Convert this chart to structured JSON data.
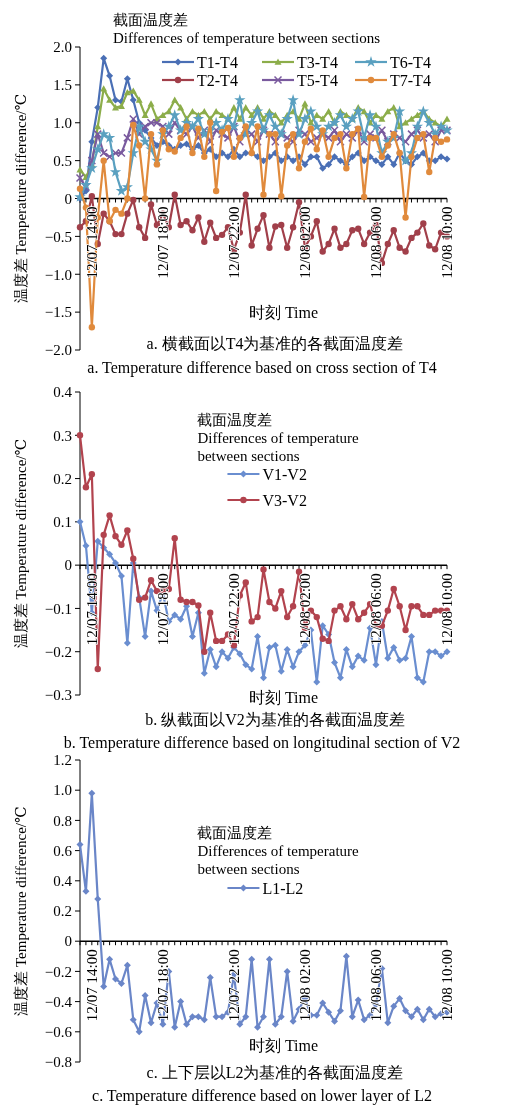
{
  "chart_data": [
    {
      "type": "line",
      "title": "a. 横截面以T4为基准的各截面温度差",
      "subtitle": "a. Temperature difference based on cross section of T4",
      "xlabel": "时刻 Time",
      "ylabel": "温度差 Temperature difference/℃",
      "legend_title": "截面温度差\nDifferences of temperature between sections",
      "legend": "top right",
      "categories": [
        null,
        null,
        "12/07 14:00",
        null,
        null,
        null,
        null,
        null,
        null,
        null,
        null,
        null,
        null,
        null,
        "12/07 18:00",
        null,
        null,
        null,
        null,
        null,
        null,
        null,
        null,
        null,
        null,
        null,
        "12/07 22:00",
        null,
        null,
        null,
        null,
        null,
        null,
        null,
        null,
        null,
        null,
        null,
        "12/08 02:00",
        null,
        null,
        null,
        null,
        null,
        null,
        null,
        null,
        null,
        null,
        null,
        "12/08 06:00",
        null,
        null,
        null,
        null,
        null,
        null,
        null,
        null,
        null,
        null,
        null,
        "12/08 10:00"
      ],
      "ylim": [
        -2,
        2
      ],
      "yticks": [
        {
          "value": -2,
          "label": "−2.0"
        },
        {
          "value": -1.5,
          "label": "−1.5"
        },
        {
          "value": -1,
          "label": "−1.0"
        },
        {
          "value": -0.5,
          "label": "−0.5"
        },
        0,
        {
          "value": 0.5,
          "label": "0.5"
        },
        {
          "value": 1,
          "label": "1.0"
        },
        {
          "value": 1.5,
          "label": "1.5"
        },
        {
          "value": 2,
          "label": "2.0"
        }
      ],
      "series": [
        {
          "name": "T1-T4",
          "color": "#4a6fb5",
          "marker": "diamond",
          "values": [
            0.0,
            0.1,
            0.75,
            1.2,
            1.85,
            1.62,
            1.3,
            1.28,
            1.58,
            1.3,
            1.0,
            0.9,
            0.8,
            0.7,
            0.75,
            0.7,
            0.65,
            0.7,
            0.72,
            0.65,
            0.7,
            0.6,
            0.65,
            0.55,
            0.6,
            0.55,
            0.65,
            0.55,
            0.6,
            0.6,
            0.55,
            0.5,
            0.55,
            0.6,
            0.5,
            0.55,
            0.5,
            0.55,
            0.45,
            0.55,
            0.55,
            0.4,
            0.45,
            0.55,
            0.5,
            0.45,
            0.55,
            0.6,
            0.5,
            0.55,
            0.5,
            0.45,
            0.55,
            0.45,
            0.6,
            0.5,
            0.45,
            0.55,
            0.6,
            0.5,
            0.5,
            0.55,
            0.52
          ]
        },
        {
          "name": "T2-T4",
          "color": "#a13f4a",
          "marker": "circle",
          "values": [
            -0.38,
            -0.3,
            0.03,
            -0.6,
            -0.2,
            -0.3,
            -0.47,
            -0.47,
            -0.2,
            -0.02,
            -0.38,
            -0.52,
            -0.08,
            -0.35,
            -0.2,
            -0.38,
            0.05,
            -0.35,
            -0.3,
            -0.42,
            -0.25,
            -0.57,
            -0.32,
            -0.52,
            -0.48,
            -0.38,
            -0.68,
            -0.45,
            0.05,
            -0.62,
            -0.4,
            -0.22,
            -0.65,
            -0.37,
            -0.35,
            -0.65,
            -0.38,
            -0.05,
            -0.65,
            -0.5,
            -0.3,
            -0.7,
            -0.6,
            -0.4,
            -0.65,
            -0.6,
            -0.42,
            -0.4,
            -0.6,
            -0.45,
            -0.35,
            -0.85,
            -0.6,
            -0.42,
            -0.65,
            -0.7,
            -0.52,
            -0.45,
            -0.33,
            -0.62,
            -0.67,
            -0.45,
            -0.5
          ]
        },
        {
          "name": "T3-T4",
          "color": "#8cad4a",
          "marker": "triangle",
          "values": [
            0.38,
            0.28,
            0.45,
            0.95,
            1.45,
            1.3,
            1.2,
            1.22,
            1.4,
            1.42,
            1.3,
            1.1,
            1.25,
            1.05,
            1.1,
            1.15,
            1.3,
            1.2,
            1.05,
            1.15,
            1.1,
            1.15,
            1.05,
            1.15,
            1.1,
            1.05,
            1.2,
            1.05,
            1.2,
            1.1,
            1.2,
            1.05,
            1.15,
            1.1,
            1.0,
            1.1,
            1.15,
            1.05,
            1.25,
            1.0,
            1.1,
            1.05,
            1.15,
            1.0,
            1.15,
            1.1,
            1.05,
            1.2,
            1.15,
            1.0,
            1.1,
            1.05,
            1.15,
            1.2,
            0.95,
            1.0,
            1.05,
            1.1,
            1.15,
            1.05,
            1.0,
            0.95,
            1.05
          ]
        },
        {
          "name": "T5-T4",
          "color": "#7a5a9e",
          "marker": "cross",
          "values": [
            0.27,
            0.15,
            0.5,
            0.85,
            0.6,
            0.55,
            0.6,
            0.6,
            0.8,
            1.05,
            0.85,
            0.95,
            1.0,
            1.0,
            0.95,
            0.85,
            1.0,
            0.9,
            0.85,
            0.95,
            0.8,
            0.9,
            0.75,
            0.9,
            0.85,
            0.8,
            0.95,
            0.75,
            0.9,
            0.85,
            0.75,
            0.9,
            0.85,
            0.75,
            0.85,
            0.8,
            0.75,
            0.9,
            0.85,
            0.75,
            0.8,
            0.85,
            0.8,
            0.9,
            0.75,
            0.85,
            0.8,
            0.9,
            0.75,
            0.85,
            0.8,
            0.9,
            0.75,
            0.85,
            0.8,
            0.75,
            0.85,
            0.9,
            0.8,
            0.85,
            0.75,
            0.9,
            0.9
          ]
        },
        {
          "name": "T6-T4",
          "color": "#5aa0c0",
          "marker": "star",
          "values": [
            0.02,
            0.18,
            0.4,
            0.65,
            0.85,
            0.8,
            0.35,
            0.1,
            0.15,
            0.6,
            0.95,
            0.75,
            0.65,
            0.5,
            0.85,
            0.95,
            1.1,
            0.9,
            1.0,
            0.95,
            1.05,
            0.85,
            0.9,
            1.0,
            0.9,
            1.05,
            0.95,
            1.3,
            0.85,
            1.0,
            1.15,
            0.9,
            1.1,
            0.95,
            0.85,
            1.05,
            1.3,
            0.85,
            1.05,
            1.15,
            0.95,
            0.85,
            0.95,
            1.0,
            1.1,
            0.95,
            1.05,
            1.15,
            0.8,
            1.1,
            0.95,
            0.6,
            0.75,
            0.8,
            1.15,
            0.5,
            0.6,
            0.95,
            1.15,
            1.0,
            0.85,
            0.95,
            0.9
          ]
        },
        {
          "name": "T7-T4",
          "color": "#e08a3c",
          "marker": "circle",
          "values": [
            0.13,
            -0.12,
            -1.7,
            -0.25,
            0.5,
            -0.3,
            -0.15,
            -0.2,
            0.0,
            0.97,
            0.7,
            0.0,
            0.85,
            0.45,
            0.9,
            0.65,
            0.62,
            0.8,
            0.95,
            0.6,
            0.92,
            0.55,
            1.0,
            0.1,
            0.88,
            0.93,
            0.55,
            0.8,
            0.95,
            0.6,
            0.95,
            0.05,
            0.85,
            0.85,
            0.03,
            0.7,
            0.85,
            0.4,
            0.75,
            0.92,
            0.65,
            0.9,
            0.55,
            0.8,
            0.85,
            0.4,
            0.85,
            0.92,
            0.02,
            0.8,
            0.8,
            0.55,
            0.7,
            0.85,
            0.6,
            -0.25,
            0.55,
            0.8,
            0.85,
            0.35,
            0.8,
            0.75,
            0.78
          ]
        }
      ]
    },
    {
      "type": "line",
      "title": "b. 纵截面以V2为基准的各截面温度差",
      "subtitle": "b. Temperature difference based on longitudinal section of V2",
      "xlabel": "时刻 Time",
      "ylabel": "温度差 Temperature difference/℃",
      "legend_title": "截面温度差\nDifferences of temperature\nbetween sections",
      "legend": "top",
      "categories": [
        null,
        null,
        "12/07 14:00",
        null,
        null,
        null,
        null,
        null,
        null,
        null,
        null,
        null,
        null,
        null,
        "12/07 18:00",
        null,
        null,
        null,
        null,
        null,
        null,
        null,
        null,
        null,
        null,
        null,
        "12/07 22:00",
        null,
        null,
        null,
        null,
        null,
        null,
        null,
        null,
        null,
        null,
        null,
        "12/08 02:00",
        null,
        null,
        null,
        null,
        null,
        null,
        null,
        null,
        null,
        null,
        null,
        "12/08 06:00",
        null,
        null,
        null,
        null,
        null,
        null,
        null,
        null,
        null,
        null,
        null,
        "12/08 10:00"
      ],
      "ylim": [
        -0.3,
        0.4
      ],
      "yticks": [
        {
          "value": -0.3,
          "label": "−0.3"
        },
        {
          "value": -0.2,
          "label": "−0.2"
        },
        {
          "value": -0.1,
          "label": "−0.1"
        },
        0,
        0.1,
        0.2,
        0.3,
        0.4
      ],
      "series": [
        {
          "name": "V1-V2",
          "color": "#6a8ed0",
          "marker": "diamond",
          "values": [
            0.1,
            0.045,
            -0.11,
            0.055,
            0.04,
            0.025,
            0.005,
            -0.025,
            -0.18,
            0.005,
            -0.075,
            -0.165,
            -0.06,
            -0.105,
            -0.065,
            -0.13,
            -0.115,
            -0.125,
            -0.095,
            -0.165,
            -0.11,
            -0.25,
            -0.195,
            -0.235,
            -0.2,
            -0.215,
            -0.19,
            -0.205,
            -0.23,
            -0.24,
            -0.165,
            -0.26,
            -0.19,
            -0.185,
            -0.245,
            -0.195,
            -0.235,
            -0.2,
            -0.185,
            -0.15,
            -0.27,
            -0.14,
            -0.16,
            -0.225,
            -0.26,
            -0.195,
            -0.235,
            -0.21,
            -0.22,
            -0.145,
            -0.23,
            -0.13,
            -0.215,
            -0.19,
            -0.22,
            -0.215,
            -0.165,
            -0.26,
            -0.27,
            -0.2,
            -0.2,
            -0.21,
            -0.2
          ]
        },
        {
          "name": "V3-V2",
          "color": "#b2434e",
          "marker": "circle",
          "values": [
            0.3,
            0.18,
            0.21,
            -0.24,
            0.07,
            0.115,
            0.067,
            0.047,
            0.08,
            0.015,
            -0.08,
            -0.075,
            -0.035,
            -0.06,
            -0.06,
            -0.055,
            0.062,
            -0.08,
            -0.085,
            -0.085,
            -0.093,
            -0.2,
            -0.11,
            -0.175,
            -0.175,
            -0.16,
            -0.185,
            -0.07,
            -0.04,
            -0.13,
            -0.12,
            -0.01,
            -0.085,
            -0.1,
            -0.06,
            -0.12,
            -0.095,
            -0.015,
            -0.145,
            -0.105,
            -0.12,
            -0.17,
            -0.175,
            -0.105,
            -0.095,
            -0.125,
            -0.09,
            -0.125,
            -0.11,
            -0.09,
            -0.14,
            -0.14,
            -0.105,
            -0.055,
            -0.095,
            -0.15,
            -0.095,
            -0.095,
            -0.115,
            -0.115,
            -0.105,
            -0.105,
            -0.105
          ]
        }
      ]
    },
    {
      "type": "line",
      "title": "c. 上下层以L2为基准的各截面温度差",
      "subtitle": "c. Temperature difference based on lower layer of L2",
      "xlabel": "时刻 Time",
      "ylabel": "温度差 Temperature difference/℃",
      "legend_title": "截面温度差\nDifferences of temperature\nbetween sections",
      "legend": "top",
      "categories": [
        null,
        null,
        "12/07 14:00",
        null,
        null,
        null,
        null,
        null,
        null,
        null,
        null,
        null,
        null,
        null,
        "12/07 18:00",
        null,
        null,
        null,
        null,
        null,
        null,
        null,
        null,
        null,
        null,
        null,
        "12/07 22:00",
        null,
        null,
        null,
        null,
        null,
        null,
        null,
        null,
        null,
        null,
        null,
        "12/08 02:00",
        null,
        null,
        null,
        null,
        null,
        null,
        null,
        null,
        null,
        null,
        null,
        "12/08 06:00",
        null,
        null,
        null,
        null,
        null,
        null,
        null,
        null,
        null,
        null,
        null,
        "12/08 10:00"
      ],
      "ylim": [
        -0.8,
        1.2
      ],
      "yticks": [
        {
          "value": -0.8,
          "label": "−0.8"
        },
        {
          "value": -0.6,
          "label": "−0.6"
        },
        {
          "value": -0.4,
          "label": "−0.4"
        },
        {
          "value": -0.2,
          "label": "−0.2"
        },
        0,
        0.2,
        0.4,
        0.6,
        0.8,
        {
          "value": 1,
          "label": "1.0"
        },
        1.2
      ],
      "series": [
        {
          "name": "L1-L2",
          "color": "#6a86c8",
          "marker": "diamond",
          "values": [
            0.64,
            0.33,
            0.98,
            0.28,
            -0.3,
            -0.12,
            -0.25,
            -0.28,
            -0.16,
            -0.52,
            -0.6,
            -0.36,
            -0.54,
            -0.41,
            -0.55,
            -0.2,
            -0.57,
            -0.4,
            -0.55,
            -0.5,
            -0.5,
            -0.52,
            -0.24,
            -0.5,
            -0.5,
            -0.47,
            -0.22,
            -0.55,
            -0.5,
            -0.12,
            -0.57,
            -0.5,
            -0.12,
            -0.55,
            -0.5,
            -0.2,
            -0.53,
            -0.45,
            -0.38,
            -0.49,
            -0.49,
            -0.41,
            -0.47,
            -0.53,
            -0.46,
            -0.1,
            -0.5,
            -0.39,
            -0.52,
            -0.49,
            -0.42,
            -0.18,
            -0.54,
            -0.43,
            -0.38,
            -0.46,
            -0.5,
            -0.45,
            -0.52,
            -0.45,
            -0.5,
            -0.48,
            -0.47
          ]
        }
      ]
    }
  ]
}
